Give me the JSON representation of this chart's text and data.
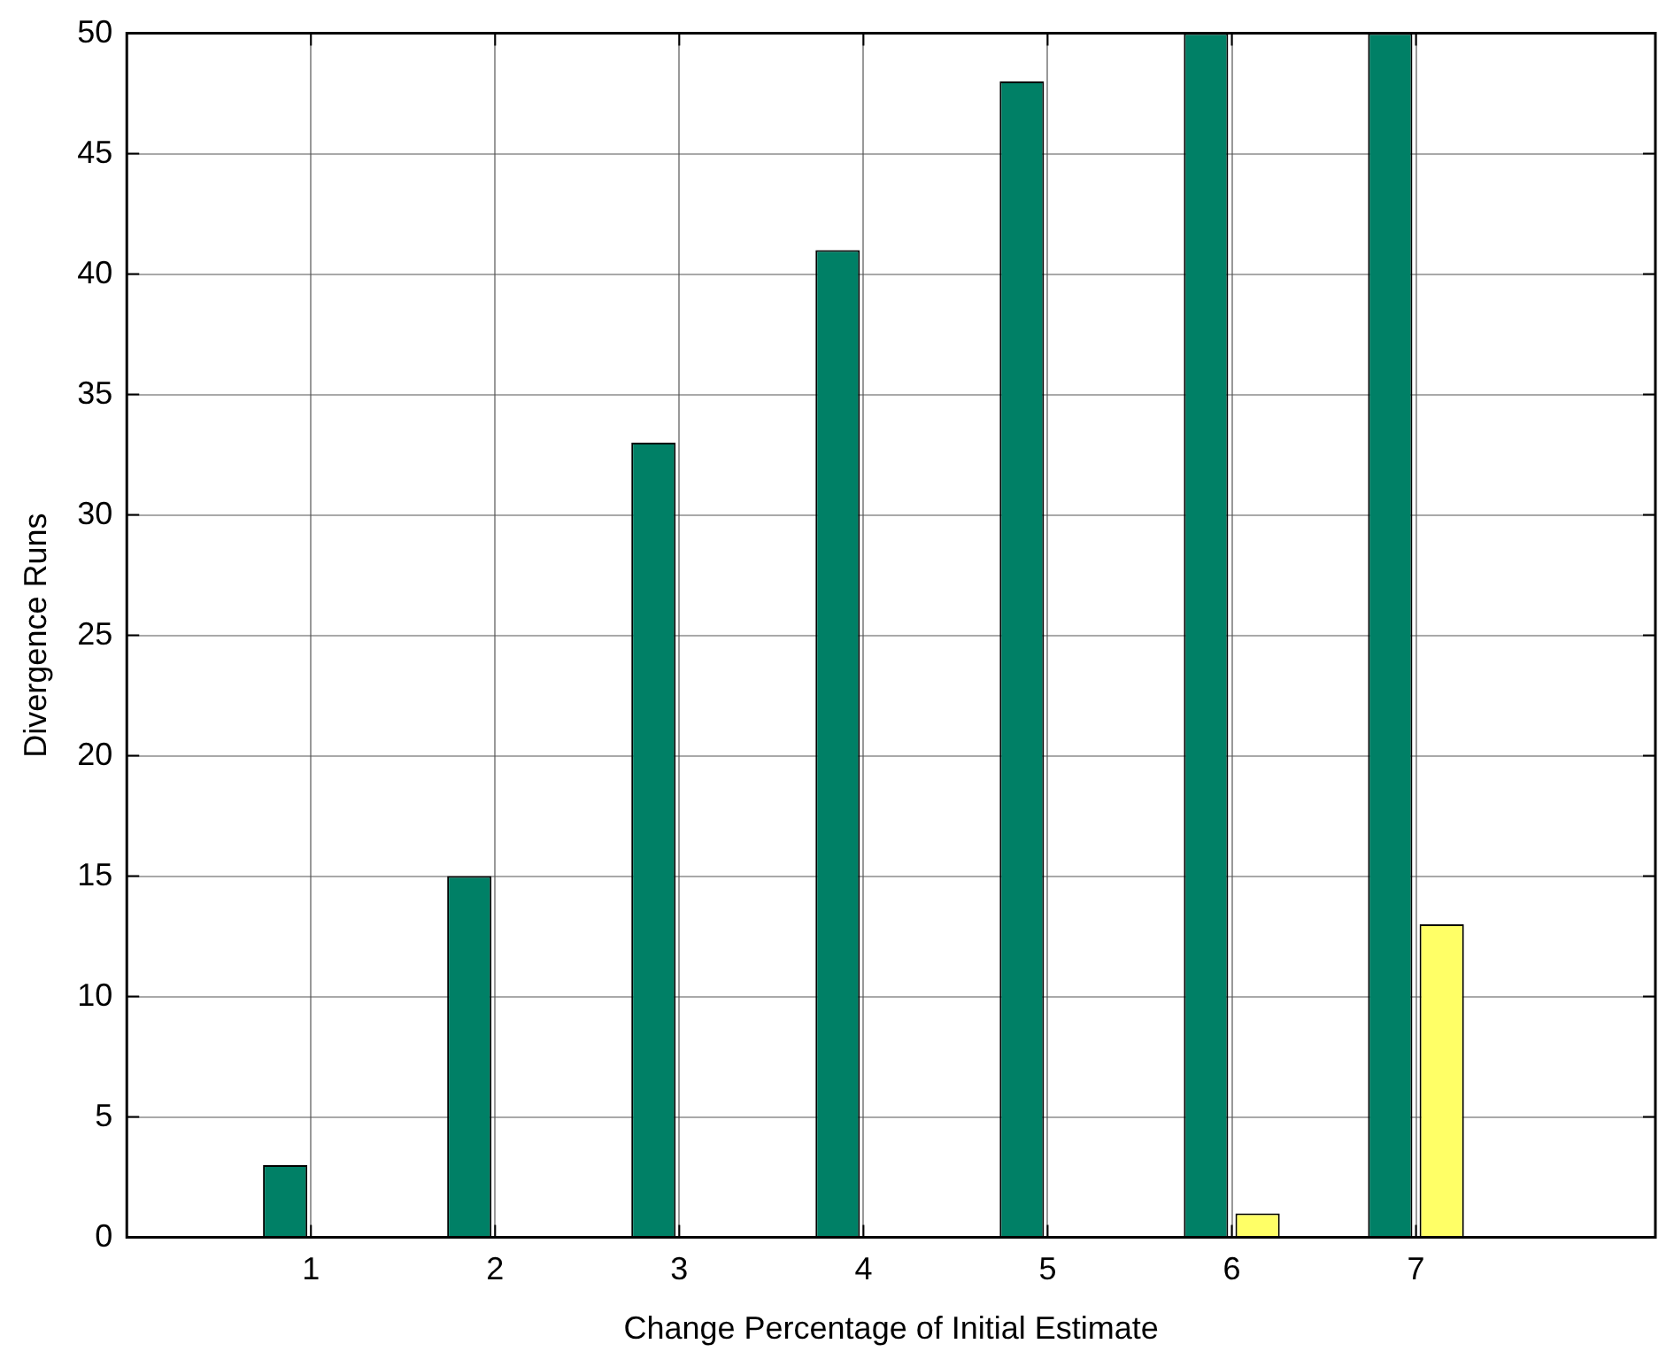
{
  "chart_data": {
    "type": "bar",
    "xlabel": "Change Percentage of Initial Estimate",
    "ylabel": "Divergence Runs",
    "x": [
      1,
      2,
      3,
      4,
      5,
      6,
      7
    ],
    "series": [
      {
        "color": "#008066",
        "values": [
          3,
          15,
          33,
          41,
          48,
          50,
          50
        ]
      },
      {
        "color": "#ffff66",
        "values": [
          0,
          0,
          0,
          0,
          0,
          1,
          13
        ]
      }
    ],
    "xlim": [
      0,
      8.3
    ],
    "xticks": [
      1,
      2,
      3,
      4,
      5,
      6,
      7
    ],
    "ylim": [
      0,
      50
    ],
    "yticks": [
      0,
      5,
      10,
      15,
      20,
      25,
      30,
      35,
      40,
      45,
      50
    ],
    "grid": true
  }
}
